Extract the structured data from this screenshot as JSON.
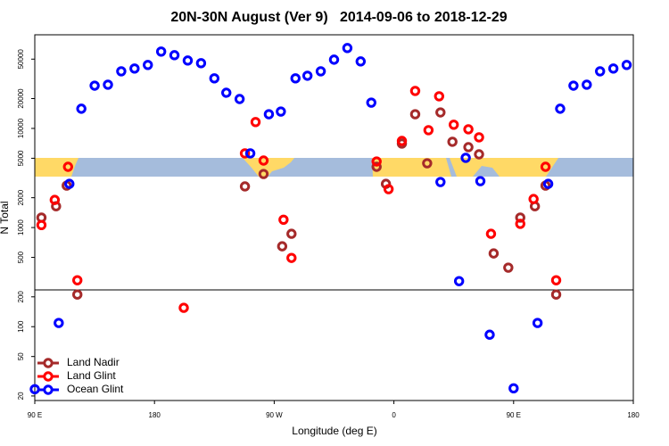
{
  "chart_data": {
    "type": "scatter",
    "title": "20N-30N August (Ver 9)   2014-09-06 to 2018-12-29",
    "x_label": "Longitude (deg E)",
    "y_label": "N Total",
    "xlim": [
      90,
      540
    ],
    "ylim": [
      18,
      88000
    ],
    "log_y": true,
    "hline": 235,
    "legend": "lower left",
    "xticks": [
      {
        "value": 90,
        "label": "90 E"
      },
      {
        "value": 180,
        "label": "180"
      },
      {
        "value": 270,
        "label": "90 W"
      },
      {
        "value": 360,
        "label": "0"
      },
      {
        "value": 450,
        "label": "90 E"
      },
      {
        "value": 540,
        "label": "180"
      }
    ],
    "yticks": [
      20,
      50,
      100,
      200,
      500,
      1000,
      2000,
      5000,
      10000,
      20000,
      50000
    ],
    "series": [
      {
        "name": "Land Nadir",
        "color": "#a52a2a",
        "x": [
          95,
          106,
          114,
          122,
          248,
          262,
          276,
          283,
          347,
          354,
          366,
          376,
          385,
          395,
          404,
          416,
          424,
          435,
          446,
          455,
          466,
          474,
          482
        ],
        "values": [
          1260,
          1640,
          2650,
          211,
          2600,
          3470,
          647,
          865,
          4100,
          2760,
          7030,
          13900,
          4450,
          14500,
          7330,
          6470,
          5480,
          548,
          394,
          1260,
          1640,
          2650,
          211
        ]
      },
      {
        "name": "Land Glint",
        "color": "#ff0000",
        "x": [
          95,
          105,
          115,
          122,
          202,
          248,
          256,
          262,
          277,
          283,
          347,
          356,
          366,
          376,
          386,
          394,
          405,
          416,
          424,
          433,
          455,
          465,
          474,
          482
        ],
        "values": [
          1060,
          1900,
          4100,
          294,
          155,
          5600,
          11600,
          4740,
          1200,
          494,
          4640,
          2440,
          7480,
          23900,
          9600,
          21100,
          10900,
          9800,
          8130,
          865,
          1090,
          1940,
          4100,
          294
        ]
      },
      {
        "name": "Ocean Glint",
        "color": "#0000ff",
        "x": [
          90,
          108,
          116,
          125,
          135,
          145,
          155,
          165,
          175,
          185,
          195,
          205,
          215,
          225,
          234,
          244,
          252,
          266,
          275,
          286,
          295,
          305,
          315,
          325,
          335,
          343,
          395,
          409,
          414,
          425,
          432,
          450,
          468,
          476,
          485,
          495,
          505,
          515,
          525,
          535
        ],
        "values": [
          23.4,
          109,
          2760,
          15800,
          27000,
          27600,
          37700,
          40200,
          43700,
          59600,
          54800,
          48400,
          45500,
          32000,
          22900,
          19800,
          5600,
          13900,
          14800,
          32000,
          34000,
          37700,
          49400,
          64700,
          47400,
          18200,
          2880,
          288,
          5050,
          2940,
          83,
          23.9,
          109,
          2760,
          15800,
          27000,
          27600,
          37700,
          40200,
          43700
        ]
      }
    ]
  }
}
